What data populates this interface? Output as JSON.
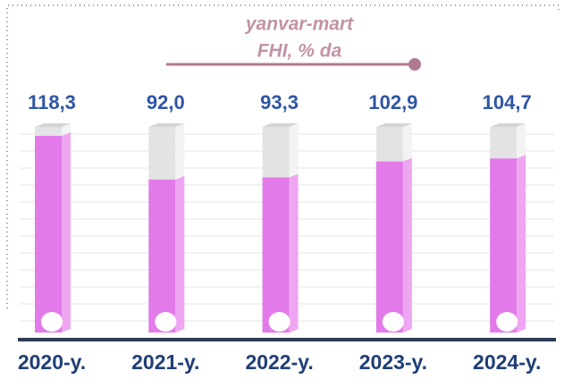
{
  "chart_data": {
    "type": "bar",
    "title": "yanvar-mart",
    "subtitle": "FHI, % da",
    "categories": [
      "2020-y.",
      "2021-y.",
      "2022-y.",
      "2023-y.",
      "2024-y."
    ],
    "values": [
      118.3,
      92.0,
      93.3,
      102.9,
      104.7
    ],
    "value_labels": [
      "118,3",
      "92,0",
      "93,3",
      "102,9",
      "104,7"
    ],
    "color": "#e27be9"
  }
}
